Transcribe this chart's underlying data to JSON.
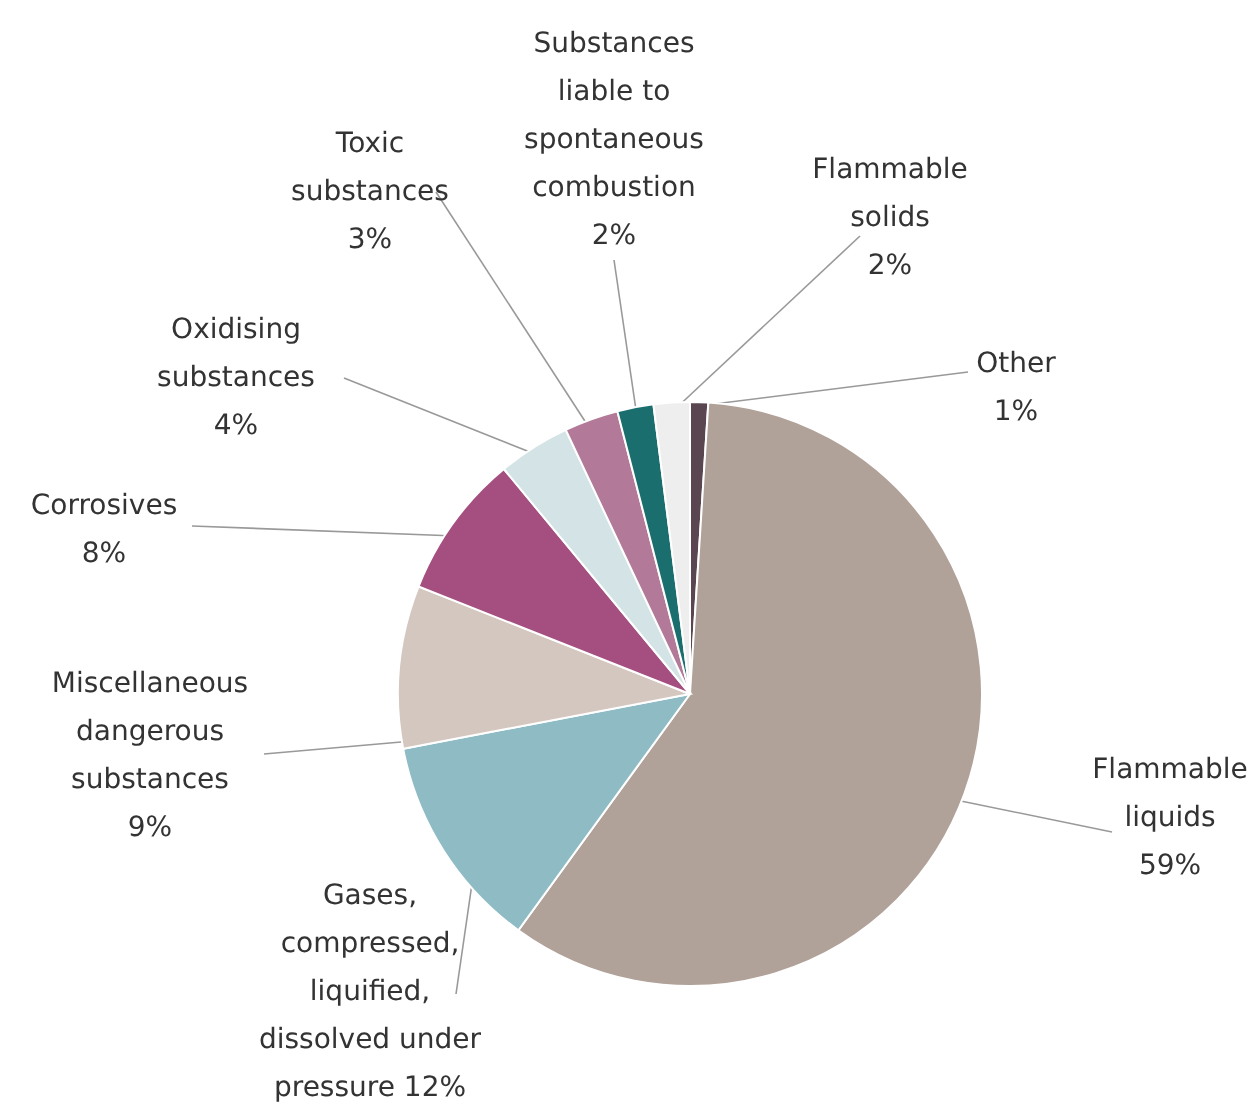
{
  "chart_data": {
    "type": "pie",
    "categories": [
      "Other",
      "Flammable liquids",
      "Gases, compressed, liquified, dissolved under pressure",
      "Miscellaneous dangerous substances",
      "Corrosives",
      "Oxidising substances",
      "Toxic substances",
      "Substances liable to spontaneous combustion",
      "Flammable solids"
    ],
    "values": [
      1,
      59,
      12,
      9,
      8,
      4,
      3,
      2,
      2
    ],
    "value_labels": [
      "1%",
      "59%",
      "12%",
      "9%",
      "8%",
      "4%",
      "3%",
      "2%",
      "2%"
    ],
    "colors": [
      "#5a4650",
      "#b0a199",
      "#8fbcc4",
      "#d4c7c0",
      "#a44f80",
      "#d3e3e6",
      "#b27a98",
      "#1a6e6e",
      "#eeeeee"
    ]
  }
}
